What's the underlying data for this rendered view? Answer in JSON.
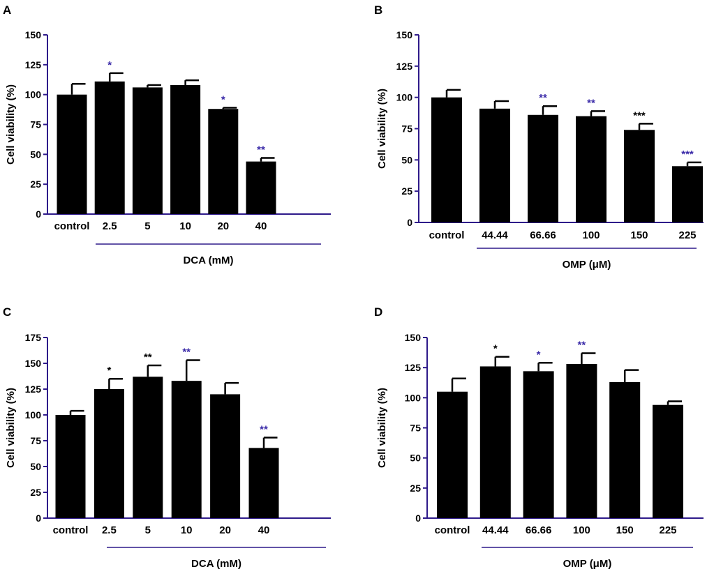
{
  "figure": {
    "colors": {
      "bar": "#000000",
      "axis": "#2e1a8a",
      "axis_text": "#000000",
      "sig_blue": "#3a2aa8",
      "sig_black": "#000000"
    }
  },
  "chart_data": [
    {
      "panel_label": "A",
      "type": "bar",
      "ylabel": "Cell viability (%)",
      "xlabel": "DCA (mM)",
      "ylim": [
        0,
        150
      ],
      "yticks": [
        "0",
        "25",
        "50",
        "75",
        "100",
        "125",
        "150"
      ],
      "categories": [
        "control",
        "2.5",
        "5",
        "10",
        "20",
        "40"
      ],
      "values": [
        100,
        111,
        106,
        108,
        88,
        44
      ],
      "errors": [
        9,
        7,
        2,
        4,
        1,
        3
      ],
      "significance": [
        "",
        "*",
        "",
        "",
        "*",
        "**"
      ],
      "significance_color": [
        "",
        "blue",
        "",
        "",
        "blue",
        "blue"
      ]
    },
    {
      "panel_label": "B",
      "type": "bar",
      "ylabel": "Cell viability (%)",
      "xlabel": "OMP (μM)",
      "ylim": [
        0,
        150
      ],
      "yticks": [
        "0",
        "25",
        "50",
        "75",
        "100",
        "125",
        "150"
      ],
      "categories": [
        "control",
        "44.44",
        "66.66",
        "100",
        "150",
        "225"
      ],
      "values": [
        100,
        91,
        86,
        85,
        74,
        45
      ],
      "errors": [
        6,
        6,
        7,
        4,
        5,
        3
      ],
      "significance": [
        "",
        "",
        "**",
        "**",
        "***",
        "***"
      ],
      "significance_color": [
        "",
        "",
        "blue",
        "blue",
        "black",
        "blue"
      ]
    },
    {
      "panel_label": "C",
      "type": "bar",
      "ylabel": "Cell viability (%)",
      "xlabel": "DCA (mM)",
      "ylim": [
        0,
        175
      ],
      "yticks": [
        "0",
        "25",
        "50",
        "75",
        "100",
        "125",
        "150",
        "175"
      ],
      "categories": [
        "control",
        "2.5",
        "5",
        "10",
        "20",
        "40"
      ],
      "values": [
        100,
        125,
        137,
        133,
        120,
        68
      ],
      "errors": [
        4,
        10,
        11,
        20,
        11,
        10
      ],
      "significance": [
        "",
        "*",
        "**",
        "**",
        "",
        "**"
      ],
      "significance_color": [
        "",
        "black",
        "black",
        "blue",
        "",
        "blue"
      ]
    },
    {
      "panel_label": "D",
      "type": "bar",
      "ylabel": "Cell viability (%)",
      "xlabel": "OMP (μM)",
      "ylim": [
        0,
        150
      ],
      "yticks": [
        "0",
        "25",
        "50",
        "75",
        "100",
        "125",
        "150"
      ],
      "categories": [
        "control",
        "44.44",
        "66.66",
        "100",
        "150",
        "225"
      ],
      "values": [
        105,
        126,
        122,
        128,
        113,
        94
      ],
      "errors": [
        11,
        8,
        7,
        9,
        10,
        3
      ],
      "significance": [
        "",
        "*",
        "*",
        "**",
        "",
        ""
      ],
      "significance_color": [
        "",
        "black",
        "blue",
        "blue",
        "",
        ""
      ]
    }
  ]
}
